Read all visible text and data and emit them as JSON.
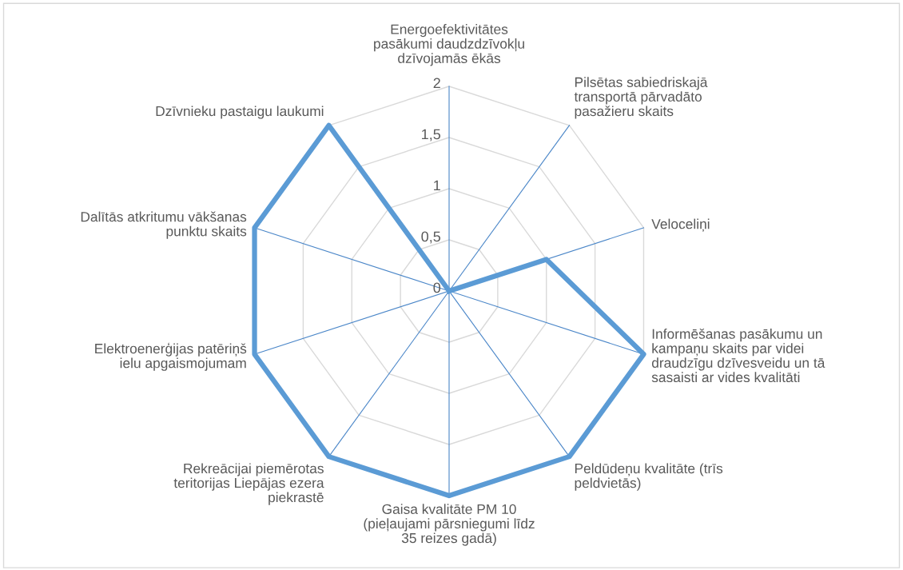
{
  "chart_data": {
    "type": "radar",
    "categories": [
      "Energoefektivitātes\npasākumi daudzdzīvokļu\ndzīvojamās ēkās",
      "Pilsētas sabiedriskajā\ntransportā pārvadāto\npasažieru skaits",
      "Veloceliņi",
      "Informēšanas pasākumu un\nkampaņu skaits par videi\ndraudzīgu dzīvesveidu un tā\nsasaisti ar vides kvalitāti",
      "Peldūdeņu kvalitāte (trīs\npeldvietās)",
      "Gaisa kvalitāte PM 10\n(pieļaujami pārsniegumi līdz\n35 reizes gadā)",
      "Rekreācijai piemērotas\nteritorijas Liepājas ezera\npiekrastē",
      "Elektroenerģijas patēriņš\nielu apgaismojumam",
      "Dalītās atkritumu vākšanas\npunktu skaits",
      "Dzīvnieku pastaigu laukumi"
    ],
    "series": [
      {
        "color": "#5b9bd5",
        "values": [
          0,
          0,
          1,
          2,
          2,
          2,
          2,
          2,
          2,
          2
        ]
      }
    ],
    "ylim": [
      0,
      2
    ],
    "yticks": [
      0,
      {
        "value": 0.5,
        "label": "0,5"
      },
      1,
      {
        "value": 1.5,
        "label": "1,5"
      },
      2
    ],
    "grid": true,
    "marker": "none",
    "line_style": "solid"
  }
}
